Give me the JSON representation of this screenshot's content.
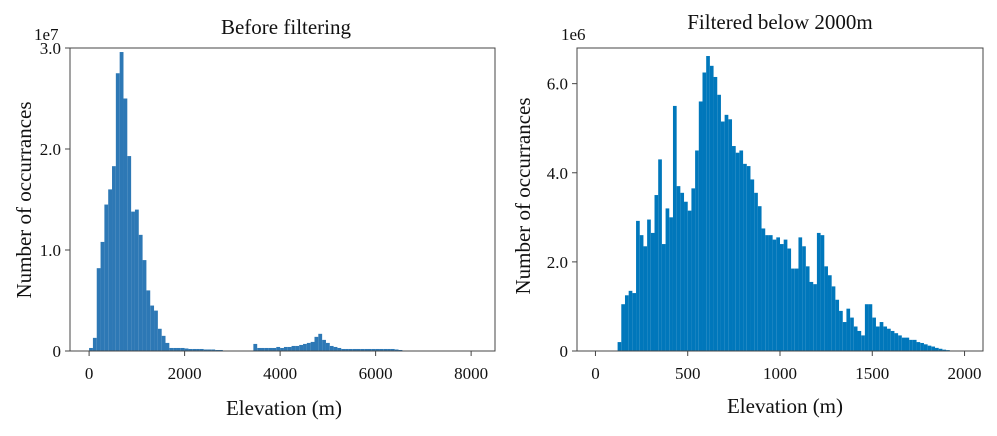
{
  "chart_data": [
    {
      "type": "bar",
      "title": "Before filtering",
      "xlabel": "Elevation (m)",
      "ylabel": "Number of occurrances",
      "offset_label": "1e7",
      "xlim": [
        -400,
        8500
      ],
      "ylim": [
        0,
        3.0
      ],
      "xticks": [
        0,
        2000,
        4000,
        6000,
        8000
      ],
      "xtick_labels": [
        "0",
        "2000",
        "4000",
        "6000",
        "8000"
      ],
      "yticks": [
        0,
        1.0,
        2.0,
        3.0
      ],
      "ytick_labels": [
        "0",
        "1.0",
        "2.0",
        "3.0"
      ],
      "bar_color": "#2d78b5",
      "bin_width": 80,
      "bins_start": [
        0,
        80,
        160,
        240,
        320,
        400,
        480,
        560,
        640,
        720,
        800,
        880,
        960,
        1040,
        1120,
        1200,
        1280,
        1360,
        1440,
        1520,
        1600,
        1680,
        1760,
        1840,
        1920,
        2000,
        2080,
        2160,
        2240,
        2320,
        2400,
        2480,
        2560,
        2640,
        2720,
        3440,
        3520,
        3600,
        3680,
        3760,
        3840,
        3920,
        4000,
        4080,
        4160,
        4240,
        4320,
        4400,
        4480,
        4560,
        4640,
        4720,
        4800,
        4880,
        4960,
        5040,
        5120,
        5200,
        5280,
        5360,
        5440,
        5520,
        5600,
        5680,
        5760,
        5840,
        5920,
        6000,
        6080,
        6160,
        6240,
        6320,
        6400,
        6480
      ],
      "values": [
        0.03,
        0.13,
        0.82,
        1.08,
        1.45,
        1.6,
        1.83,
        2.75,
        2.96,
        2.5,
        1.93,
        1.38,
        1.4,
        1.15,
        0.9,
        0.6,
        0.45,
        0.4,
        0.22,
        0.15,
        0.08,
        0.03,
        0.03,
        0.03,
        0.03,
        0.025,
        0.02,
        0.02,
        0.02,
        0.02,
        0.015,
        0.015,
        0.015,
        0.01,
        0.01,
        0.07,
        0.03,
        0.03,
        0.03,
        0.03,
        0.03,
        0.04,
        0.03,
        0.04,
        0.04,
        0.05,
        0.05,
        0.06,
        0.07,
        0.08,
        0.09,
        0.14,
        0.17,
        0.11,
        0.08,
        0.05,
        0.04,
        0.03,
        0.02,
        0.02,
        0.02,
        0.02,
        0.02,
        0.02,
        0.02,
        0.02,
        0.02,
        0.02,
        0.02,
        0.02,
        0.02,
        0.02,
        0.015,
        0.01
      ]
    },
    {
      "type": "bar",
      "title": "Filtered below 2000m",
      "xlabel": "Elevation (m)",
      "ylabel": "Number of occurrances",
      "offset_label": "1e6",
      "xlim": [
        -100,
        2100
      ],
      "ylim": [
        0,
        6.8
      ],
      "xticks": [
        0,
        500,
        1000,
        1500,
        2000
      ],
      "xtick_labels": [
        "0",
        "500",
        "1000",
        "1500",
        "2000"
      ],
      "yticks": [
        0,
        2.0,
        4.0,
        6.0
      ],
      "ytick_labels": [
        "0",
        "2.0",
        "4.0",
        "6.0"
      ],
      "bar_color": "#0077bb",
      "bin_width": 20,
      "bins_start": [
        120,
        140,
        160,
        180,
        200,
        220,
        240,
        260,
        280,
        300,
        320,
        340,
        360,
        380,
        400,
        420,
        440,
        460,
        480,
        500,
        520,
        540,
        560,
        580,
        600,
        620,
        640,
        660,
        680,
        700,
        720,
        740,
        760,
        780,
        800,
        820,
        840,
        860,
        880,
        900,
        920,
        940,
        960,
        980,
        1000,
        1020,
        1040,
        1060,
        1080,
        1100,
        1120,
        1140,
        1160,
        1180,
        1200,
        1220,
        1240,
        1260,
        1280,
        1300,
        1320,
        1340,
        1360,
        1380,
        1400,
        1420,
        1440,
        1460,
        1480,
        1500,
        1520,
        1540,
        1560,
        1580,
        1600,
        1620,
        1640,
        1660,
        1680,
        1700,
        1720,
        1740,
        1760,
        1780,
        1800,
        1820,
        1840,
        1860,
        1880,
        1900
      ],
      "values": [
        0.2,
        1.05,
        1.25,
        1.35,
        1.3,
        2.92,
        2.6,
        2.35,
        2.95,
        2.65,
        3.5,
        4.3,
        2.4,
        3.2,
        3.0,
        5.5,
        3.7,
        3.55,
        3.35,
        3.15,
        3.65,
        4.5,
        5.6,
        6.25,
        6.62,
        6.4,
        6.15,
        5.75,
        5.15,
        5.3,
        5.2,
        4.6,
        4.45,
        4.5,
        4.2,
        4.15,
        3.85,
        3.55,
        3.25,
        2.75,
        2.6,
        2.6,
        2.5,
        2.55,
        2.4,
        2.5,
        2.3,
        1.85,
        1.85,
        2.55,
        2.35,
        1.9,
        1.55,
        1.5,
        2.65,
        2.6,
        1.9,
        1.7,
        1.45,
        1.15,
        0.9,
        0.65,
        0.95,
        0.75,
        0.55,
        0.45,
        0.35,
        1.05,
        1.05,
        0.75,
        0.55,
        0.65,
        0.55,
        0.5,
        0.45,
        0.4,
        0.35,
        0.3,
        0.3,
        0.25,
        0.25,
        0.2,
        0.18,
        0.15,
        0.12,
        0.1,
        0.07,
        0.05,
        0.03,
        0.02
      ]
    }
  ]
}
